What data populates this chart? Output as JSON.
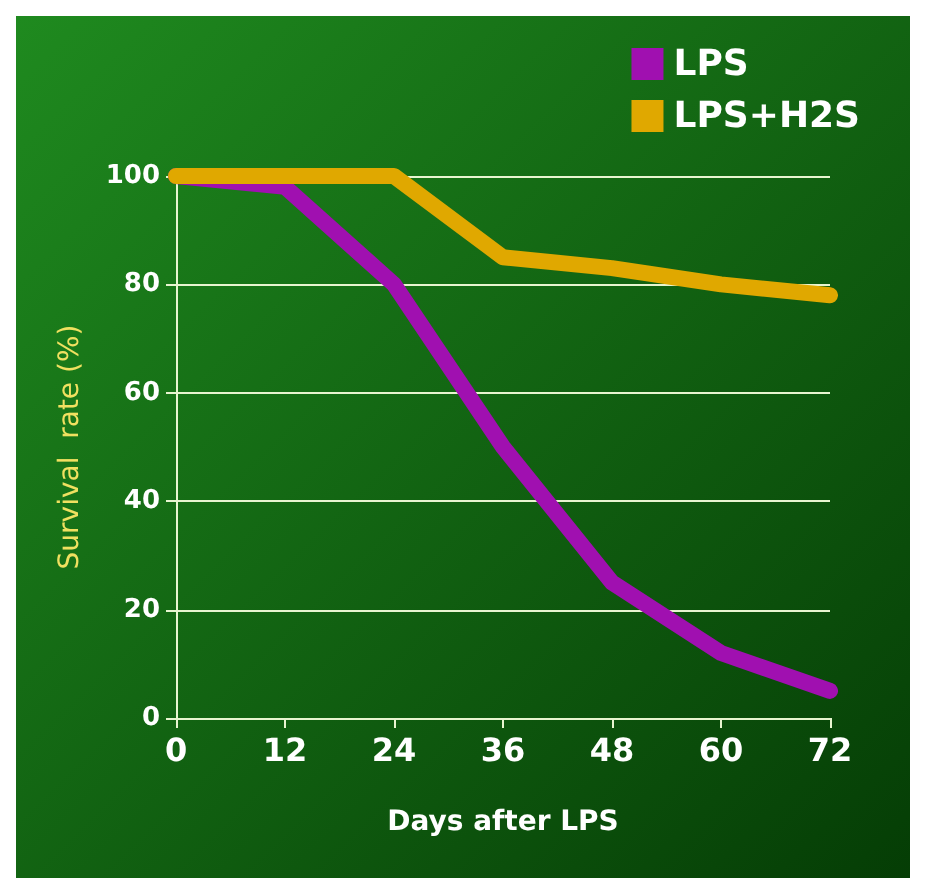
{
  "chart_data": {
    "type": "line",
    "xlabel": "Days after LPS",
    "ylabel": "Survival  rate (%)",
    "categories": [
      "0",
      "12",
      "24",
      "36",
      "48",
      "60",
      "72"
    ],
    "series": [
      {
        "name": "LPS",
        "color": "#a010b0",
        "values": [
          100,
          98,
          80,
          50,
          25,
          12,
          5
        ]
      },
      {
        "name": "LPS+H2S",
        "color": "#e0a800",
        "values": [
          100,
          100,
          100,
          85,
          83,
          80,
          78
        ]
      }
    ],
    "ylim": [
      0,
      100
    ],
    "yticks": [
      0,
      20,
      40,
      60,
      80,
      100
    ],
    "grid": "y",
    "legend": "top right",
    "marker": "none",
    "line_style": "solid"
  }
}
